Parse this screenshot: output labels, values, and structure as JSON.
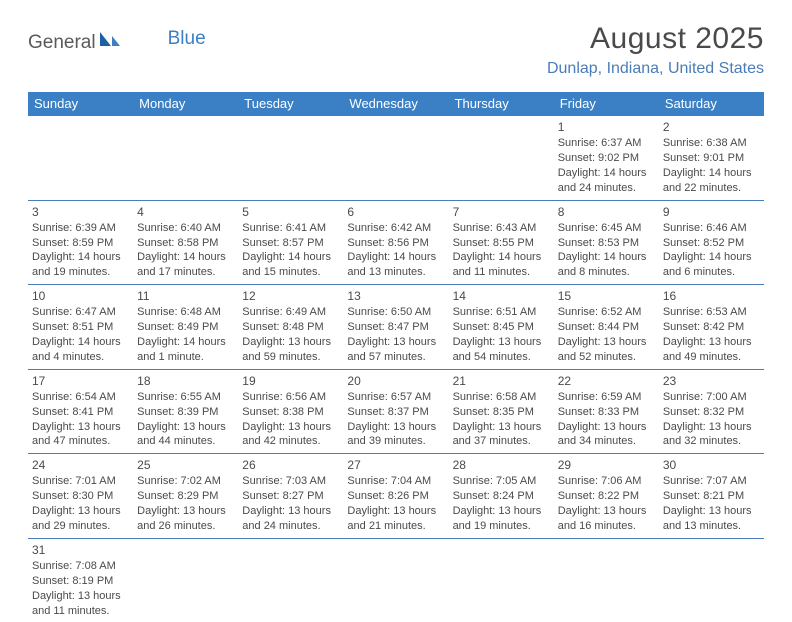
{
  "logo": {
    "text1": "General",
    "text2": "Blue"
  },
  "title": "August 2025",
  "location": "Dunlap, Indiana, United States",
  "colors": {
    "header_bg": "#3b7fc4",
    "header_text": "#ffffff",
    "rule": "#4a7db8",
    "body_text": "#4a4a4a",
    "location_text": "#4a7db8"
  },
  "dayHeaders": [
    "Sunday",
    "Monday",
    "Tuesday",
    "Wednesday",
    "Thursday",
    "Friday",
    "Saturday"
  ],
  "firstWeekday": 5,
  "days": [
    {
      "n": 1,
      "sunrise": "6:37 AM",
      "sunset": "9:02 PM",
      "daylight": "14 hours and 24 minutes."
    },
    {
      "n": 2,
      "sunrise": "6:38 AM",
      "sunset": "9:01 PM",
      "daylight": "14 hours and 22 minutes."
    },
    {
      "n": 3,
      "sunrise": "6:39 AM",
      "sunset": "8:59 PM",
      "daylight": "14 hours and 19 minutes."
    },
    {
      "n": 4,
      "sunrise": "6:40 AM",
      "sunset": "8:58 PM",
      "daylight": "14 hours and 17 minutes."
    },
    {
      "n": 5,
      "sunrise": "6:41 AM",
      "sunset": "8:57 PM",
      "daylight": "14 hours and 15 minutes."
    },
    {
      "n": 6,
      "sunrise": "6:42 AM",
      "sunset": "8:56 PM",
      "daylight": "14 hours and 13 minutes."
    },
    {
      "n": 7,
      "sunrise": "6:43 AM",
      "sunset": "8:55 PM",
      "daylight": "14 hours and 11 minutes."
    },
    {
      "n": 8,
      "sunrise": "6:45 AM",
      "sunset": "8:53 PM",
      "daylight": "14 hours and 8 minutes."
    },
    {
      "n": 9,
      "sunrise": "6:46 AM",
      "sunset": "8:52 PM",
      "daylight": "14 hours and 6 minutes."
    },
    {
      "n": 10,
      "sunrise": "6:47 AM",
      "sunset": "8:51 PM",
      "daylight": "14 hours and 4 minutes."
    },
    {
      "n": 11,
      "sunrise": "6:48 AM",
      "sunset": "8:49 PM",
      "daylight": "14 hours and 1 minute."
    },
    {
      "n": 12,
      "sunrise": "6:49 AM",
      "sunset": "8:48 PM",
      "daylight": "13 hours and 59 minutes."
    },
    {
      "n": 13,
      "sunrise": "6:50 AM",
      "sunset": "8:47 PM",
      "daylight": "13 hours and 57 minutes."
    },
    {
      "n": 14,
      "sunrise": "6:51 AM",
      "sunset": "8:45 PM",
      "daylight": "13 hours and 54 minutes."
    },
    {
      "n": 15,
      "sunrise": "6:52 AM",
      "sunset": "8:44 PM",
      "daylight": "13 hours and 52 minutes."
    },
    {
      "n": 16,
      "sunrise": "6:53 AM",
      "sunset": "8:42 PM",
      "daylight": "13 hours and 49 minutes."
    },
    {
      "n": 17,
      "sunrise": "6:54 AM",
      "sunset": "8:41 PM",
      "daylight": "13 hours and 47 minutes."
    },
    {
      "n": 18,
      "sunrise": "6:55 AM",
      "sunset": "8:39 PM",
      "daylight": "13 hours and 44 minutes."
    },
    {
      "n": 19,
      "sunrise": "6:56 AM",
      "sunset": "8:38 PM",
      "daylight": "13 hours and 42 minutes."
    },
    {
      "n": 20,
      "sunrise": "6:57 AM",
      "sunset": "8:37 PM",
      "daylight": "13 hours and 39 minutes."
    },
    {
      "n": 21,
      "sunrise": "6:58 AM",
      "sunset": "8:35 PM",
      "daylight": "13 hours and 37 minutes."
    },
    {
      "n": 22,
      "sunrise": "6:59 AM",
      "sunset": "8:33 PM",
      "daylight": "13 hours and 34 minutes."
    },
    {
      "n": 23,
      "sunrise": "7:00 AM",
      "sunset": "8:32 PM",
      "daylight": "13 hours and 32 minutes."
    },
    {
      "n": 24,
      "sunrise": "7:01 AM",
      "sunset": "8:30 PM",
      "daylight": "13 hours and 29 minutes."
    },
    {
      "n": 25,
      "sunrise": "7:02 AM",
      "sunset": "8:29 PM",
      "daylight": "13 hours and 26 minutes."
    },
    {
      "n": 26,
      "sunrise": "7:03 AM",
      "sunset": "8:27 PM",
      "daylight": "13 hours and 24 minutes."
    },
    {
      "n": 27,
      "sunrise": "7:04 AM",
      "sunset": "8:26 PM",
      "daylight": "13 hours and 21 minutes."
    },
    {
      "n": 28,
      "sunrise": "7:05 AM",
      "sunset": "8:24 PM",
      "daylight": "13 hours and 19 minutes."
    },
    {
      "n": 29,
      "sunrise": "7:06 AM",
      "sunset": "8:22 PM",
      "daylight": "13 hours and 16 minutes."
    },
    {
      "n": 30,
      "sunrise": "7:07 AM",
      "sunset": "8:21 PM",
      "daylight": "13 hours and 13 minutes."
    },
    {
      "n": 31,
      "sunrise": "7:08 AM",
      "sunset": "8:19 PM",
      "daylight": "13 hours and 11 minutes."
    }
  ],
  "labels": {
    "sunrise": "Sunrise",
    "sunset": "Sunset",
    "daylight": "Daylight"
  }
}
